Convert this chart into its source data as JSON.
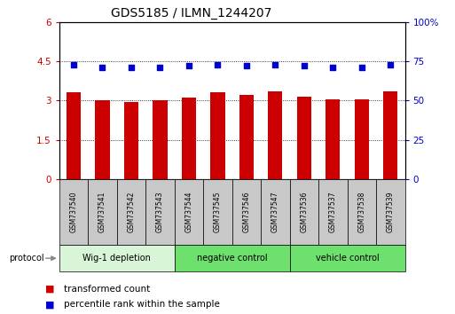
{
  "title": "GDS5185 / ILMN_1244207",
  "samples": [
    "GSM737540",
    "GSM737541",
    "GSM737542",
    "GSM737543",
    "GSM737544",
    "GSM737545",
    "GSM737546",
    "GSM737547",
    "GSM737536",
    "GSM737537",
    "GSM737538",
    "GSM737539"
  ],
  "bar_values": [
    3.3,
    3.0,
    2.95,
    3.0,
    3.1,
    3.3,
    3.2,
    3.35,
    3.15,
    3.05,
    3.05,
    3.35
  ],
  "dot_values": [
    4.35,
    4.27,
    4.25,
    4.25,
    4.33,
    4.38,
    4.32,
    4.38,
    4.33,
    4.28,
    4.28,
    4.38
  ],
  "groups": [
    {
      "label": "Wig-1 depletion",
      "start": 0,
      "end": 4,
      "color": "#d8f5d8"
    },
    {
      "label": "negative control",
      "start": 4,
      "end": 8,
      "color": "#6de06d"
    },
    {
      "label": "vehicle control",
      "start": 8,
      "end": 12,
      "color": "#6de06d"
    }
  ],
  "bar_color": "#cc0000",
  "dot_color": "#0000cc",
  "left_ylim": [
    0,
    6
  ],
  "right_ylim": [
    0,
    100
  ],
  "left_yticks": [
    0,
    1.5,
    3.0,
    4.5,
    6
  ],
  "right_yticks": [
    0,
    25,
    50,
    75,
    100
  ],
  "left_yticklabels": [
    "0",
    "1.5",
    "3",
    "4.5",
    "6"
  ],
  "right_yticklabels": [
    "0",
    "25",
    "50",
    "75",
    "100%"
  ],
  "protocol_label": "protocol",
  "legend_bar_label": "transformed count",
  "legend_dot_label": "percentile rank within the sample",
  "bar_width": 0.5,
  "title_fontsize": 10,
  "tick_fontsize": 7.5,
  "label_fontsize": 7.5
}
